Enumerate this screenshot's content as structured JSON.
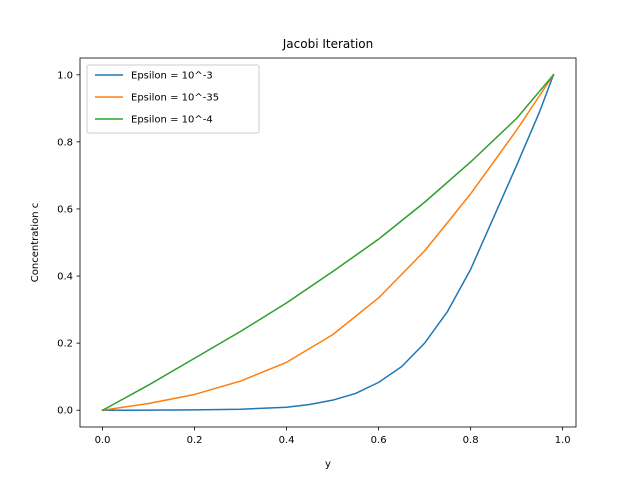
{
  "chart_data": {
    "type": "line",
    "title": "Jacobi Iteration",
    "xlabel": "y",
    "ylabel": "Concentration c",
    "xlim": [
      -0.049,
      1.029
    ],
    "ylim": [
      -0.05,
      1.05
    ],
    "xticks": [
      0.0,
      0.2,
      0.4,
      0.6,
      0.8,
      1.0
    ],
    "xtick_labels": [
      "0.0",
      "0.2",
      "0.4",
      "0.6",
      "0.8",
      "1.0"
    ],
    "yticks": [
      0.0,
      0.2,
      0.4,
      0.6,
      0.8,
      1.0
    ],
    "ytick_labels": [
      "0.0",
      "0.2",
      "0.4",
      "0.6",
      "0.8",
      "1.0"
    ],
    "grid": false,
    "legend_position": "top-left",
    "series": [
      {
        "name": "Epsilon = 10^-3",
        "color": "#1f77b4",
        "x": [
          0.0,
          0.1,
          0.2,
          0.3,
          0.4,
          0.45,
          0.5,
          0.55,
          0.6,
          0.65,
          0.7,
          0.75,
          0.8,
          0.85,
          0.9,
          0.95,
          0.98
        ],
        "y": [
          0.0,
          0.0002,
          0.001,
          0.003,
          0.009,
          0.017,
          0.03,
          0.05,
          0.083,
          0.13,
          0.2,
          0.295,
          0.42,
          0.575,
          0.73,
          0.89,
          1.0
        ]
      },
      {
        "name": "Epsilon = 10^-35",
        "color": "#ff7f0e",
        "x": [
          0.0,
          0.1,
          0.2,
          0.3,
          0.4,
          0.5,
          0.6,
          0.7,
          0.8,
          0.9,
          0.98
        ],
        "y": [
          0.0,
          0.02,
          0.047,
          0.087,
          0.143,
          0.225,
          0.335,
          0.475,
          0.645,
          0.835,
          1.0
        ]
      },
      {
        "name": "Epsilon = 10^-4",
        "color": "#2ca02c",
        "x": [
          0.0,
          0.1,
          0.2,
          0.3,
          0.4,
          0.5,
          0.6,
          0.7,
          0.8,
          0.9,
          0.98
        ],
        "y": [
          0.0,
          0.075,
          0.155,
          0.235,
          0.32,
          0.413,
          0.51,
          0.62,
          0.74,
          0.87,
          1.0
        ]
      }
    ]
  }
}
